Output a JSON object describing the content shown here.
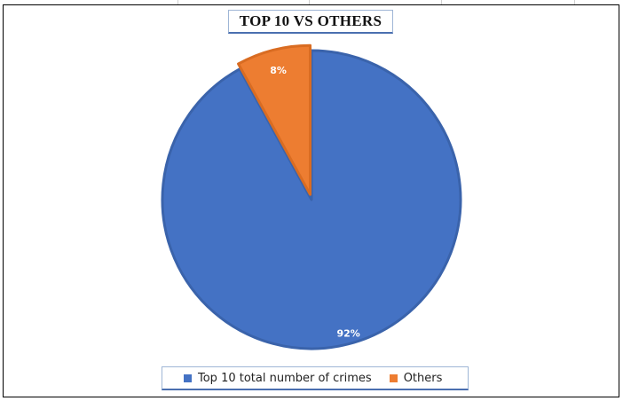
{
  "chart_data": {
    "type": "pie",
    "title": "TOP 10 VS OTHERS",
    "slices": [
      {
        "name": "Top 10 total number of crimes",
        "value": 92,
        "label": "92%",
        "color": "#4472c4"
      },
      {
        "name": "Others",
        "value": 8,
        "label": "8%",
        "color": "#ed7d31"
      }
    ],
    "legend_position": "bottom"
  }
}
